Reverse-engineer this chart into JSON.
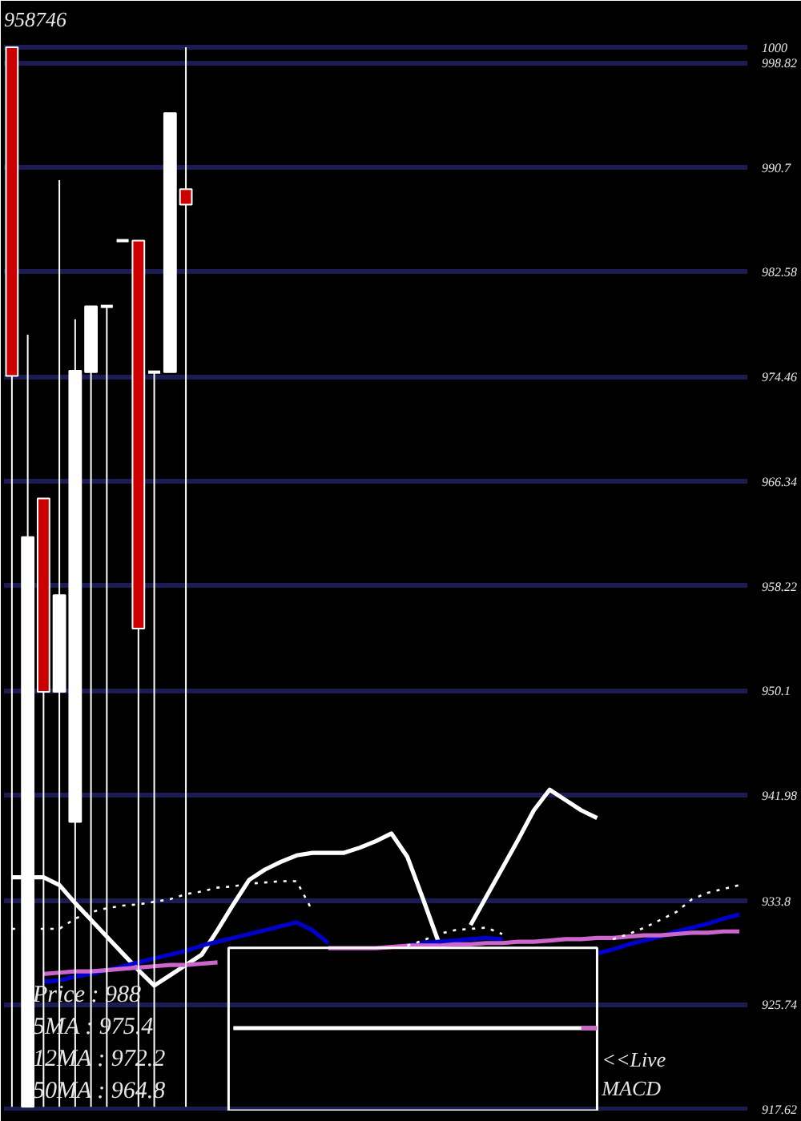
{
  "chart_data": {
    "type": "candlestick",
    "title": "958746",
    "categories": [
      null,
      null,
      null,
      null,
      null,
      null,
      null,
      null,
      null,
      null,
      null,
      null,
      null,
      null,
      null,
      null,
      null,
      null,
      null,
      null,
      null,
      null,
      null,
      null,
      null,
      null,
      null,
      null,
      null,
      null,
      null,
      null,
      null,
      null,
      null,
      null,
      null,
      null,
      null,
      null,
      null,
      null,
      null,
      null,
      null,
      null,
      null
    ],
    "ohlc": [
      [
        1000.0,
        1000.0,
        917.8,
        974.5
      ],
      [
        917.8,
        977.7,
        917.8,
        962.0
      ],
      [
        965.0,
        965.0,
        917.8,
        950.0
      ],
      [
        950.0,
        989.7,
        917.8,
        957.5
      ],
      [
        939.9,
        978.9,
        917.8,
        974.9
      ],
      [
        974.8,
        979.9,
        917.8,
        979.9
      ],
      [
        979.9,
        979.9,
        917.8,
        979.9
      ],
      [
        985.0,
        985.0,
        985.0,
        985.0
      ],
      [
        985.0,
        985.0,
        917.8,
        954.9
      ],
      [
        974.8,
        974.8,
        917.8,
        974.8
      ],
      [
        974.8,
        994.9,
        974.8,
        994.9
      ],
      [
        989.0,
        1000.0,
        917.8,
        987.8
      ],
      null,
      null,
      null,
      null,
      null,
      null,
      null,
      null,
      null,
      null,
      null,
      null,
      null,
      null,
      null,
      null,
      null,
      null,
      null,
      null,
      null,
      null,
      null,
      null,
      null,
      null,
      null,
      null,
      null,
      null,
      null,
      null,
      null,
      null,
      null
    ],
    "colors": [
      "#cc0000",
      "#ffffff",
      "#cc0000",
      "#ffffff",
      "#ffffff",
      "#ffffff",
      "#ffffff",
      "#ffffff",
      "#cc0000",
      "#ffffff",
      "#ffffff",
      "#cc0000",
      null,
      null,
      null,
      null,
      null,
      null,
      null,
      null,
      null,
      null,
      null,
      null,
      null,
      null,
      null,
      null,
      null,
      null,
      null,
      null,
      null,
      null,
      null,
      null,
      null,
      null,
      null,
      null,
      null,
      null,
      null,
      null,
      null,
      null,
      null
    ],
    "series": [
      {
        "type": "line",
        "color": "#ffffff",
        "values": [
          935.6,
          935.6,
          935.6,
          935.0,
          933.6,
          932.3,
          931.0,
          929.7,
          928.4,
          927.2,
          928.0,
          928.8,
          929.6,
          931.5,
          933.5,
          935.4,
          936.2,
          936.8,
          937.3,
          937.5,
          937.5,
          937.5,
          937.9,
          938.4,
          939.0,
          937.2,
          933.9,
          930.5,
          null,
          931.9,
          934.1,
          936.3,
          938.5,
          940.8,
          942.4,
          941.6,
          940.8,
          940.2,
          null,
          null,
          null,
          null,
          null,
          null,
          null,
          null,
          null
        ]
      },
      {
        "type": "line",
        "color": "#0000cc",
        "values": [
          null,
          null,
          927.5,
          927.6,
          927.9,
          928.1,
          928.4,
          928.7,
          929.0,
          929.3,
          929.6,
          929.9,
          930.3,
          930.6,
          930.9,
          931.2,
          931.5,
          931.8,
          932.1,
          931.5,
          930.5,
          null,
          null,
          null,
          null,
          930.3,
          930.5,
          930.6,
          930.7,
          930.8,
          930.9,
          930.8,
          null,
          null,
          null,
          null,
          null,
          929.7,
          930.0,
          930.4,
          930.7,
          931.0,
          931.4,
          931.7,
          932.0,
          932.4,
          932.7
        ]
      },
      {
        "type": "line",
        "color": "#cc66cc",
        "values": [
          null,
          null,
          928.1,
          928.2,
          928.3,
          928.3,
          928.4,
          928.5,
          928.6,
          928.7,
          928.8,
          928.8,
          928.9,
          929.0,
          null,
          null,
          null,
          null,
          null,
          null,
          930.1,
          930.1,
          930.1,
          930.1,
          930.2,
          930.3,
          930.3,
          930.3,
          930.4,
          930.4,
          930.5,
          930.5,
          930.6,
          930.6,
          930.7,
          930.8,
          930.8,
          930.9,
          930.9,
          931.0,
          931.1,
          931.1,
          931.2,
          931.3,
          931.3,
          931.4,
          931.4
        ]
      },
      {
        "type": "line",
        "color": "#ffffff",
        "line_style": "dotted",
        "values": [
          931.6,
          931.6,
          931.6,
          931.6,
          932.4,
          932.9,
          933.2,
          933.4,
          933.5,
          933.7,
          933.9,
          934.3,
          934.5,
          934.8,
          934.9,
          935.1,
          935.2,
          935.3,
          935.3,
          933.0,
          null,
          null,
          null,
          null,
          null,
          930.3,
          930.7,
          931.2,
          931.5,
          931.6,
          931.7,
          931.2,
          null,
          null,
          null,
          null,
          null,
          null,
          930.8,
          931.2,
          931.7,
          932.3,
          932.9,
          933.9,
          934.4,
          934.7,
          935.0
        ]
      },
      {
        "type": "line",
        "name": "<<Live MACD",
        "color": "#ffffff",
        "values": [
          null,
          null,
          null,
          null,
          null,
          null,
          null,
          null,
          null,
          null,
          null,
          null,
          null,
          null,
          923.9,
          923.9,
          923.9,
          923.9,
          923.9,
          923.9,
          923.9,
          923.9,
          923.9,
          923.9,
          923.9,
          923.9,
          923.9,
          923.9,
          923.9,
          923.9,
          923.9,
          923.9,
          923.9,
          923.9,
          923.9,
          923.9,
          923.9,
          923.9,
          null,
          null,
          null,
          null,
          null,
          null,
          null,
          null,
          null
        ]
      },
      {
        "type": "line",
        "color": "#cc66cc",
        "values": [
          null,
          null,
          null,
          null,
          null,
          null,
          null,
          null,
          null,
          null,
          null,
          null,
          null,
          null,
          null,
          null,
          null,
          null,
          null,
          null,
          null,
          null,
          null,
          null,
          null,
          null,
          null,
          null,
          null,
          null,
          null,
          null,
          null,
          null,
          null,
          null,
          923.9,
          923.9,
          null,
          null,
          null,
          null,
          null,
          null,
          null,
          null,
          null
        ]
      }
    ],
    "ylim": [
      917.5,
      1001
    ],
    "yticks": [
      917.62,
      925.74,
      933.8,
      941.98,
      950.1,
      958.22,
      966.34,
      974.46,
      982.58,
      990.7,
      998.82,
      1000
    ],
    "grid": "y",
    "tick_labels": "y",
    "annotations": [
      "Price : 988",
      "5MA : 975.4",
      "12MA : 972.2",
      "50MA : 964.8"
    ]
  }
}
